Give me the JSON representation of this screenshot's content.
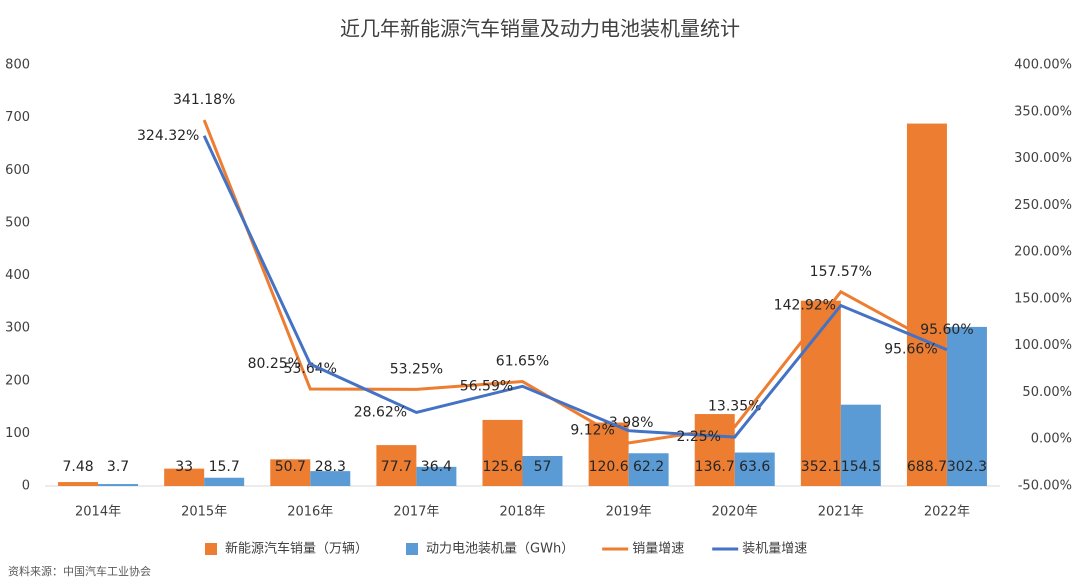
{
  "chart_data": {
    "type": "combo",
    "title": "近几年新能源汽车销量及动力电池装机量统计",
    "source": "资料来源：中国汽车工业协会",
    "categories": [
      "2014年",
      "2015年",
      "2016年",
      "2017年",
      "2018年",
      "2019年",
      "2020年",
      "2021年",
      "2022年"
    ],
    "series": [
      {
        "name": "新能源汽车销量（万辆）",
        "type": "bar",
        "color": "#ed7d31",
        "values": [
          7.48,
          33,
          50.7,
          77.7,
          125.6,
          120.6,
          136.7,
          352.1,
          688.7
        ]
      },
      {
        "name": "动力电池装机量（GWh）",
        "type": "bar",
        "color": "#5b9bd5",
        "values": [
          3.7,
          15.7,
          28.3,
          36.4,
          57,
          62.2,
          63.6,
          154.5,
          302.3
        ]
      },
      {
        "name": "销量增速",
        "type": "line",
        "axis": "y2",
        "color": "#ed7d31",
        "values": [
          null,
          341.18,
          53.64,
          53.25,
          61.65,
          -3.98,
          13.35,
          157.57,
          95.6
        ],
        "value_labels": [
          null,
          "341.18%",
          "53.64%",
          "53.25%",
          "61.65%",
          "-3.98%",
          "13.35%",
          "157.57%",
          "95.60%"
        ]
      },
      {
        "name": "装机量增速",
        "type": "line",
        "axis": "y2",
        "color": "#4472c4",
        "values": [
          null,
          324.32,
          80.25,
          28.62,
          56.59,
          9.12,
          2.25,
          142.92,
          95.66
        ],
        "value_labels": [
          null,
          "324.32%",
          "80.25%",
          "28.62%",
          "56.59%",
          "9.12%",
          "2.25%",
          "142.92%",
          "95.66%"
        ]
      }
    ],
    "ylim": [
      0,
      800
    ],
    "yticks": [
      0,
      100,
      200,
      300,
      400,
      500,
      600,
      700,
      800
    ],
    "y2lim": [
      -50,
      400
    ],
    "y2ticks": [
      {
        "value": -50,
        "label": "-50.00%"
      },
      {
        "value": 0,
        "label": "0.00%"
      },
      {
        "value": 50,
        "label": "50.00%"
      },
      {
        "value": 100,
        "label": "100.00%"
      },
      {
        "value": 150,
        "label": "150.00%"
      },
      {
        "value": 200,
        "label": "200.00%"
      },
      {
        "value": 250,
        "label": "250.00%"
      },
      {
        "value": 300,
        "label": "300.00%"
      },
      {
        "value": 350,
        "label": "350.00%"
      },
      {
        "value": 400,
        "label": "400.00%"
      }
    ],
    "grid": false,
    "legend": "bottom"
  }
}
